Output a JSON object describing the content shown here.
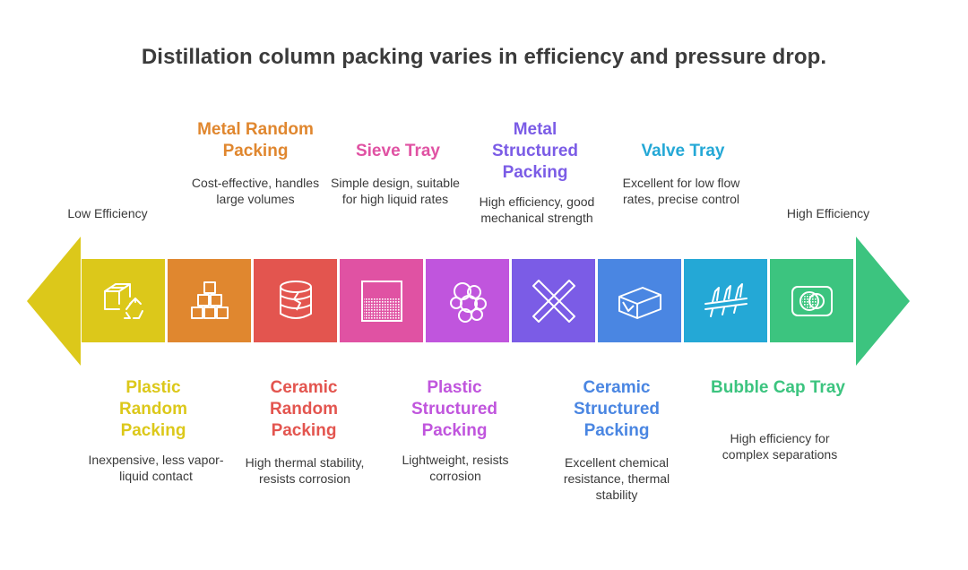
{
  "title": "Distillation column packing varies in efficiency and pressure drop.",
  "scale": {
    "low_label": "Low Efficiency",
    "high_label": "High Efficiency"
  },
  "colors": {
    "plastic_random": "#dcc81a",
    "metal_random": "#e0872f",
    "ceramic_random": "#e3554f",
    "sieve_tray": "#e052a3",
    "plastic_structured": "#c055dd",
    "metal_structured": "#7b5ce6",
    "ceramic_structured": "#4a86e2",
    "valve_tray": "#24a8d6",
    "bubble_cap_tray": "#3cc47f"
  },
  "items": [
    {
      "id": "plastic_random",
      "title": "Plastic Random Packing",
      "desc": "Inexpensive, less vapor-liquid contact",
      "icon": "box-recycle-icon",
      "position": "bottom"
    },
    {
      "id": "metal_random",
      "title": "Metal Random Packing",
      "desc": "Cost-effective, handles large volumes",
      "icon": "stacked-blocks-icon",
      "position": "top"
    },
    {
      "id": "ceramic_random",
      "title": "Ceramic Random Packing",
      "desc": "High thermal stability, resists corrosion",
      "icon": "cracked-cylinder-icon",
      "position": "bottom"
    },
    {
      "id": "sieve_tray",
      "title": "Sieve Tray",
      "desc": "Simple design, suitable for high liquid rates",
      "icon": "sieve-mesh-icon",
      "position": "top"
    },
    {
      "id": "plastic_structured",
      "title": "Plastic Structured Packing",
      "desc": "Lightweight, resists corrosion",
      "icon": "bubbles-cluster-icon",
      "position": "bottom"
    },
    {
      "id": "metal_structured",
      "title": "Metal Structured Packing",
      "desc": "High efficiency, good mechanical strength",
      "icon": "crossed-bands-icon",
      "position": "top"
    },
    {
      "id": "ceramic_structured",
      "title": "Ceramic Structured Packing",
      "desc": "Excellent chemical resistance, thermal stability",
      "icon": "ceramic-block-icon",
      "position": "bottom"
    },
    {
      "id": "valve_tray",
      "title": "Valve Tray",
      "desc": "Excellent for low flow rates, precise control",
      "icon": "valve-row-icon",
      "position": "top"
    },
    {
      "id": "bubble_cap_tray",
      "title": "Bubble Cap Tray",
      "desc": "High efficiency for complex separations",
      "icon": "bubble-cap-icon",
      "position": "bottom"
    }
  ]
}
